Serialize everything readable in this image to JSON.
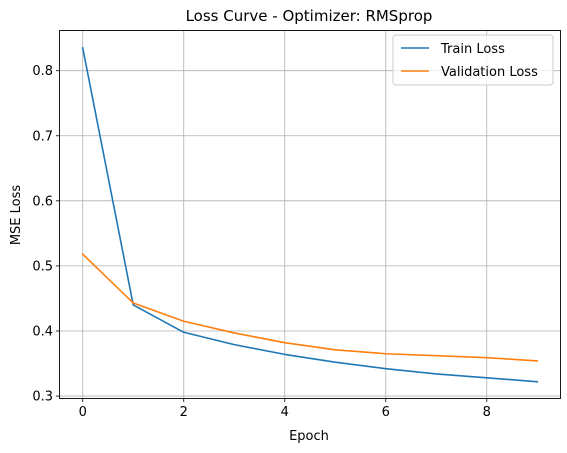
{
  "chart_data": {
    "type": "line",
    "title": "Loss Curve - Optimizer: RMSprop",
    "xlabel": "Epoch",
    "ylabel": "MSE Loss",
    "xlim": [
      -0.45,
      9.45
    ],
    "ylim": [
      0.297,
      0.861
    ],
    "xticks": [
      0,
      2,
      4,
      6,
      8
    ],
    "yticks": [
      0.3,
      0.4,
      0.5,
      0.6,
      0.7,
      0.8
    ],
    "ytick_labels": [
      "0.3",
      "0.4",
      "0.5",
      "0.6",
      "0.7",
      "0.8"
    ],
    "grid": true,
    "legend_position": "top-right",
    "x": [
      0,
      1,
      2,
      3,
      4,
      5,
      6,
      7,
      8,
      9
    ],
    "series": [
      {
        "name": "Train Loss",
        "color": "#1f77b4",
        "values": [
          0.835,
          0.44,
          0.398,
          0.379,
          0.364,
          0.352,
          0.342,
          0.334,
          0.328,
          0.322
        ]
      },
      {
        "name": "Validation Loss",
        "color": "#ff7f0e",
        "values": [
          0.518,
          0.443,
          0.415,
          0.397,
          0.382,
          0.371,
          0.365,
          0.362,
          0.359,
          0.354
        ]
      }
    ]
  }
}
